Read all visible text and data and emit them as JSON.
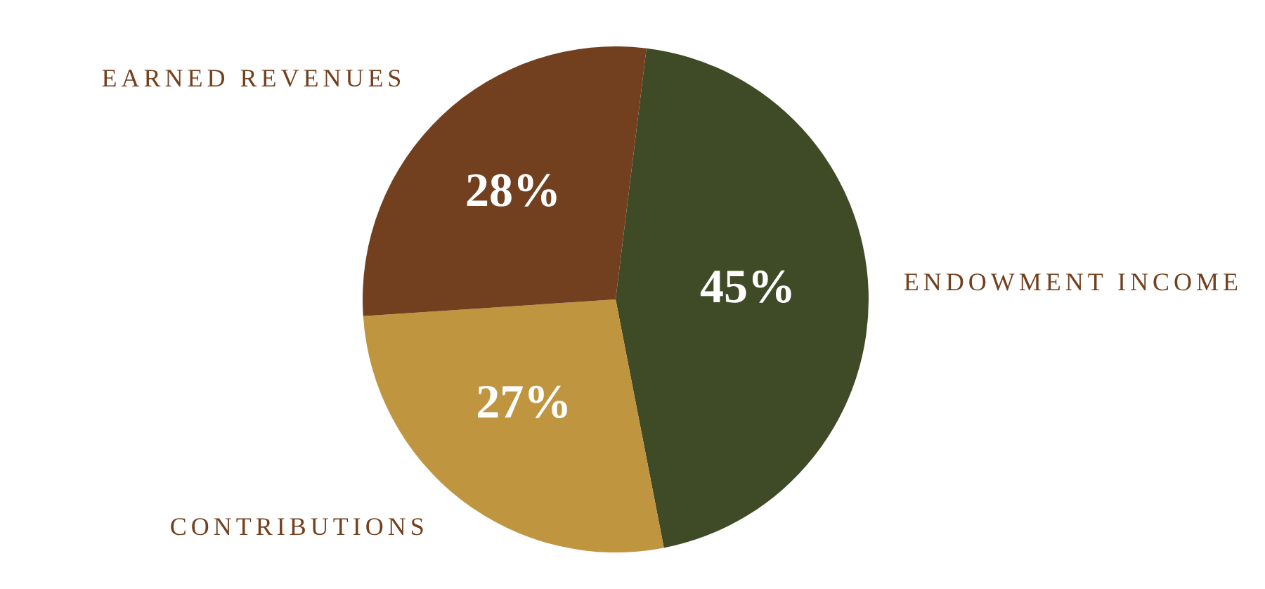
{
  "chart_data": {
    "type": "pie",
    "categories": [
      "ENDOWMENT INCOME",
      "CONTRIBUTIONS",
      "EARNED REVENUES"
    ],
    "values": [
      45,
      27,
      28
    ],
    "colors": [
      "#3f4a26",
      "#c09540",
      "#73401f"
    ],
    "value_labels": [
      "45%",
      "27%",
      "28%"
    ],
    "legend": false
  }
}
